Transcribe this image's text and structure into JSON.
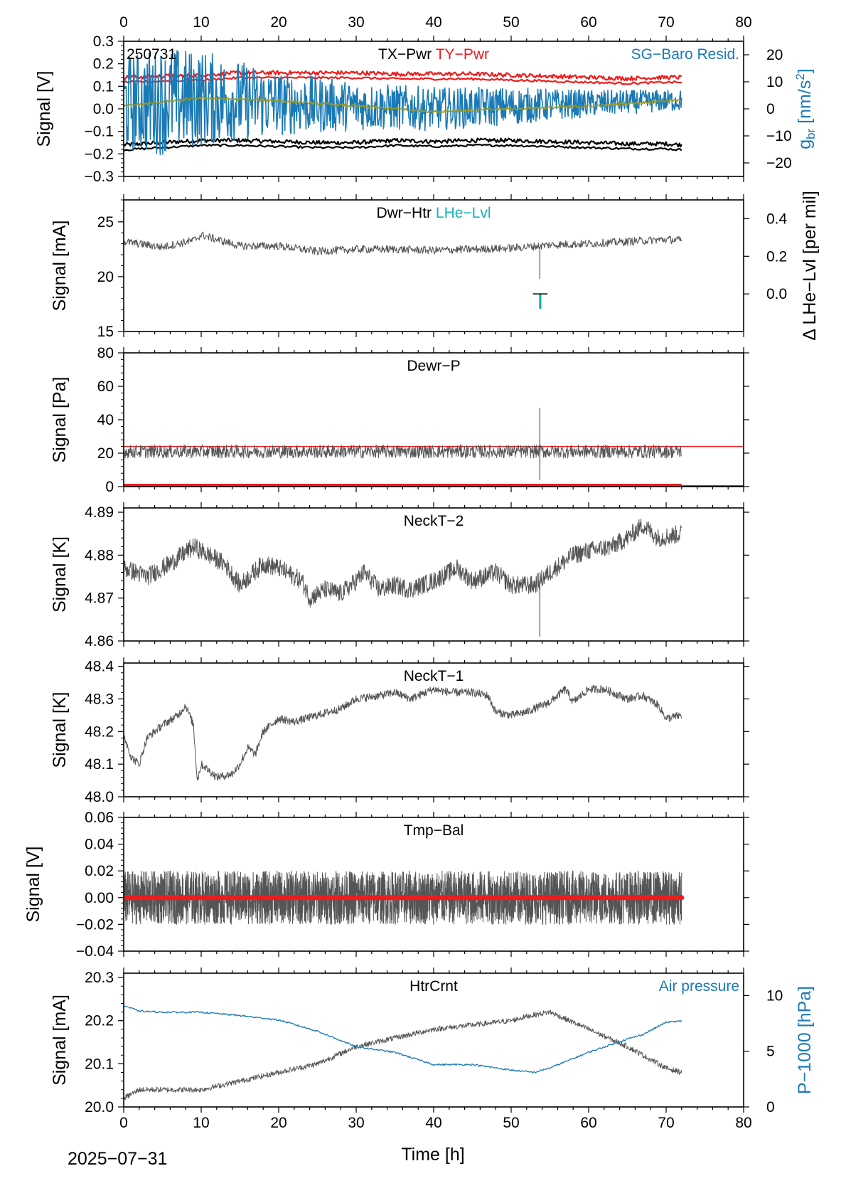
{
  "figure": {
    "date_label": "2025−07−31",
    "x_axis": {
      "label": "Time [h]",
      "range": [
        0,
        80
      ],
      "major_ticks": [
        0,
        10,
        20,
        30,
        40,
        50,
        60,
        70,
        80
      ]
    }
  },
  "chart_data": [
    {
      "type": "line",
      "id": "tx-ty",
      "stamp": "250731",
      "titles": [
        {
          "text": "TX−Pwr",
          "color": "#000000"
        },
        {
          "text": "TY−Pwr",
          "color": "#ee1c1c"
        }
      ],
      "corner_label": {
        "text": "SG−Baro Resid.",
        "color": "#1a7ab5"
      },
      "ylabel": "Signal [V]",
      "ylim": [
        -0.3,
        0.3
      ],
      "yticks": [
        -0.3,
        -0.2,
        -0.1,
        0.0,
        0.1,
        0.2,
        0.3
      ],
      "ytick_labels": [
        "−0.3",
        "−0.2",
        "−0.1",
        "0.0",
        "0.1",
        "0.2",
        "0.3"
      ],
      "y2label": "g_br [nm/s²]",
      "y2lim": [
        -25,
        25
      ],
      "y2ticks": [
        -20,
        -10,
        0,
        10,
        20
      ],
      "y2tick_labels": [
        "−20",
        "−10",
        "0",
        "10",
        "20"
      ],
      "series": [
        {
          "name": "TX−Pwr",
          "color": "#000000",
          "x": [
            0,
            5,
            10,
            15,
            20,
            25,
            30,
            35,
            40,
            45,
            50,
            55,
            60,
            65,
            70,
            72
          ],
          "y": [
            -0.16,
            -0.15,
            -0.14,
            -0.14,
            -0.145,
            -0.15,
            -0.15,
            -0.14,
            -0.145,
            -0.14,
            -0.14,
            -0.145,
            -0.15,
            -0.155,
            -0.155,
            -0.16
          ]
        },
        {
          "name": "TY−Pwr",
          "color": "#ee1c1c",
          "x": [
            0,
            5,
            10,
            15,
            20,
            25,
            30,
            35,
            40,
            45,
            50,
            55,
            60,
            65,
            70,
            72
          ],
          "y": [
            0.14,
            0.145,
            0.15,
            0.16,
            0.16,
            0.16,
            0.16,
            0.155,
            0.155,
            0.155,
            0.15,
            0.145,
            0.14,
            0.135,
            0.14,
            0.14
          ]
        },
        {
          "name": "SG−Baro Resid.",
          "axis": "y2",
          "color": "#1a7ab5",
          "x": [
            0,
            5,
            10,
            20,
            30,
            40,
            50,
            60,
            70,
            72
          ],
          "y": [
            2,
            3,
            4,
            2,
            1,
            0,
            1,
            2,
            3,
            3
          ],
          "noise_envelope": [
            18,
            20,
            18,
            12,
            9,
            8,
            7,
            5,
            4,
            4
          ]
        },
        {
          "color": "#9a9a22",
          "axis": "y2",
          "x": [
            0,
            10,
            20,
            30,
            40,
            50,
            60,
            70,
            72
          ],
          "y": [
            1,
            4,
            3,
            1,
            -1,
            0,
            1,
            3,
            3
          ]
        }
      ]
    },
    {
      "type": "line",
      "id": "dwr-htr",
      "titles": [
        {
          "text": "Dwr−Htr",
          "color": "#000000"
        },
        {
          "text": "LHe−Lvl",
          "color": "#17b3b3"
        }
      ],
      "ylabel": "Signal [mA]",
      "ylim": [
        15,
        27
      ],
      "yticks": [
        15,
        20,
        25
      ],
      "ytick_labels": [
        "15",
        "20",
        "25"
      ],
      "y2label": "Δ LHe−Lvl [per mil]",
      "y2lim": [
        -0.2,
        0.5
      ],
      "y2ticks": [
        0.0,
        0.2,
        0.4
      ],
      "y2tick_labels": [
        "0.0",
        "0.2",
        "0.4"
      ],
      "series": [
        {
          "name": "Dwr−Htr",
          "color": "#555555",
          "x": [
            0,
            5,
            9,
            10,
            15,
            20,
            25,
            30,
            35,
            40,
            45,
            50,
            53.5,
            55,
            60,
            65,
            70,
            72
          ],
          "y": [
            23.2,
            22.7,
            23.3,
            23.8,
            22.8,
            22.8,
            22.3,
            22.5,
            22.5,
            22.4,
            22.5,
            22.6,
            22.8,
            22.9,
            23.0,
            23.2,
            23.4,
            23.3
          ]
        },
        {
          "name": "LHe−Lvl",
          "axis": "y2",
          "color": "#17b3b3",
          "x": [
            53.5,
            53.9
          ],
          "y": [
            -0.08,
            0.0
          ]
        }
      ]
    },
    {
      "type": "line",
      "id": "dewr-p",
      "titles": [
        {
          "text": "Dewr−P",
          "color": "#000000"
        }
      ],
      "ylabel": "Signal [Pa]",
      "ylim": [
        0,
        80
      ],
      "yticks": [
        0,
        20,
        40,
        60,
        80
      ],
      "ytick_labels": [
        "0",
        "20",
        "40",
        "60",
        "80"
      ],
      "reference_line": {
        "y": 24,
        "color": "#ee1c1c"
      },
      "series": [
        {
          "name": "Dewr−P",
          "color": "#555555",
          "x": [
            0,
            10,
            20,
            30,
            40,
            50,
            60,
            70,
            72
          ],
          "y": [
            21,
            21,
            21,
            21,
            21,
            21,
            21,
            21,
            21
          ]
        },
        {
          "color": "#ee1c1c",
          "x": [
            0,
            72
          ],
          "y": [
            0.5,
            0.5
          ]
        }
      ]
    },
    {
      "type": "line",
      "id": "neckt-2",
      "titles": [
        {
          "text": "NeckT−2",
          "color": "#000000"
        }
      ],
      "ylabel": "Signal [K]",
      "ylim": [
        4.86,
        4.891
      ],
      "yticks": [
        4.86,
        4.87,
        4.88,
        4.89
      ],
      "ytick_labels": [
        "4.86",
        "4.87",
        "4.88",
        "4.89"
      ],
      "series": [
        {
          "name": "NeckT−2",
          "color": "#555555",
          "x": [
            0,
            3,
            6,
            9,
            10,
            13,
            15,
            18,
            20,
            23,
            24,
            26,
            28,
            30,
            31,
            33,
            35,
            37,
            40,
            43,
            45,
            48,
            50,
            53,
            55,
            58,
            60,
            63,
            65,
            67,
            69,
            72
          ],
          "y": [
            4.877,
            4.875,
            4.878,
            4.882,
            4.881,
            4.878,
            4.873,
            4.878,
            4.877,
            4.874,
            4.87,
            4.872,
            4.871,
            4.874,
            4.876,
            4.872,
            4.873,
            4.872,
            4.874,
            4.877,
            4.874,
            4.876,
            4.873,
            4.873,
            4.876,
            4.88,
            4.881,
            4.882,
            4.884,
            4.887,
            4.884,
            4.885
          ]
        }
      ]
    },
    {
      "type": "line",
      "id": "neckt-1",
      "titles": [
        {
          "text": "NeckT−1",
          "color": "#000000"
        }
      ],
      "ylabel": "Signal [K]",
      "ylim": [
        48.0,
        48.41
      ],
      "yticks": [
        48.0,
        48.1,
        48.2,
        48.3,
        48.4
      ],
      "ytick_labels": [
        "48.0",
        "48.1",
        "48.2",
        "48.3",
        "48.4"
      ],
      "series": [
        {
          "name": "NeckT−1",
          "color": "#555555",
          "x": [
            0,
            1,
            2,
            3,
            5,
            7,
            8,
            9,
            9.5,
            10,
            12,
            14,
            15,
            16,
            17,
            18,
            20,
            22,
            25,
            28,
            30,
            33,
            35,
            37,
            40,
            42,
            45,
            47,
            48,
            50,
            52,
            55,
            57,
            58,
            60,
            62,
            65,
            67,
            69,
            70,
            72
          ],
          "y": [
            48.19,
            48.12,
            48.1,
            48.18,
            48.22,
            48.25,
            48.28,
            48.22,
            48.05,
            48.1,
            48.06,
            48.07,
            48.1,
            48.15,
            48.13,
            48.2,
            48.24,
            48.23,
            48.25,
            48.27,
            48.3,
            48.31,
            48.32,
            48.3,
            48.33,
            48.32,
            48.32,
            48.31,
            48.26,
            48.25,
            48.26,
            48.29,
            48.33,
            48.29,
            48.33,
            48.33,
            48.3,
            48.31,
            48.28,
            48.24,
            48.25
          ]
        }
      ]
    },
    {
      "type": "line",
      "id": "tmp-bal",
      "titles": [
        {
          "text": "Tmp−Bal",
          "color": "#000000"
        }
      ],
      "ylabel": "Signal [V]",
      "ylim": [
        -0.04,
        0.06
      ],
      "yticks": [
        -0.04,
        -0.02,
        0.0,
        0.02,
        0.04,
        0.06
      ],
      "ytick_labels": [
        "−0.04",
        "−0.02",
        "0.00",
        "0.02",
        "0.04",
        "0.06"
      ],
      "series": [
        {
          "name": "Tmp−Bal",
          "color": "#555555",
          "x": [
            0,
            72
          ],
          "y": [
            0.0,
            0.0
          ],
          "noise_envelope": [
            0.02,
            0.02
          ]
        },
        {
          "color": "#ee1c1c",
          "x": [
            0,
            72
          ],
          "y": [
            0.0,
            0.0
          ]
        }
      ]
    },
    {
      "type": "line",
      "id": "htrcrnt",
      "titles": [
        {
          "text": "HtrCrnt",
          "color": "#000000"
        }
      ],
      "corner_label": {
        "text": "Air pressure",
        "color": "#1a7ab5"
      },
      "ylabel": "Signal [mA]",
      "ylim": [
        20.0,
        20.31
      ],
      "yticks": [
        20.0,
        20.1,
        20.2,
        20.3
      ],
      "ytick_labels": [
        "20.0",
        "20.1",
        "20.2",
        "20.3"
      ],
      "y2label": "P−1000 [hPa]",
      "y2lim": [
        0,
        12
      ],
      "y2ticks": [
        0,
        5,
        10
      ],
      "y2tick_labels": [
        "0",
        "5",
        "10"
      ],
      "series": [
        {
          "name": "HtrCrnt",
          "color": "#555555",
          "x": [
            0,
            2,
            5,
            10,
            15,
            20,
            25,
            30,
            35,
            40,
            45,
            50,
            52,
            55,
            60,
            65,
            70,
            72
          ],
          "y": [
            20.02,
            20.04,
            20.04,
            20.04,
            20.06,
            20.08,
            20.1,
            20.14,
            20.16,
            20.18,
            20.19,
            20.2,
            20.21,
            20.22,
            20.18,
            20.14,
            20.09,
            20.08
          ]
        },
        {
          "name": "Air pressure",
          "axis": "y2",
          "color": "#1a7ab5",
          "x": [
            0,
            2,
            5,
            10,
            15,
            20,
            25,
            30,
            35,
            40,
            45,
            50,
            53,
            55,
            60,
            65,
            67,
            70,
            72
          ],
          "y": [
            9.1,
            8.6,
            8.5,
            8.5,
            8.2,
            7.8,
            6.8,
            5.4,
            4.9,
            3.8,
            3.8,
            3.3,
            3.1,
            3.5,
            4.9,
            6.1,
            6.5,
            7.6,
            7.7
          ]
        }
      ]
    }
  ]
}
